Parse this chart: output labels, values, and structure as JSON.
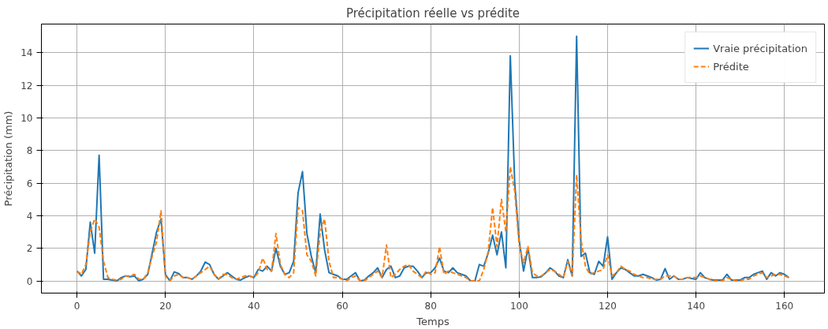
{
  "chart_data": {
    "type": "line",
    "title": "Précipitation réelle vs prédite",
    "xlabel": "Temps",
    "ylabel": "Précipitation (mm)",
    "x": [
      0,
      1,
      2,
      3,
      4,
      5,
      6,
      7,
      8,
      9,
      10,
      11,
      12,
      13,
      14,
      15,
      16,
      17,
      18,
      19,
      20,
      21,
      22,
      23,
      24,
      25,
      26,
      27,
      28,
      29,
      30,
      31,
      32,
      33,
      34,
      35,
      36,
      37,
      38,
      39,
      40,
      41,
      42,
      43,
      44,
      45,
      46,
      47,
      48,
      49,
      50,
      51,
      52,
      53,
      54,
      55,
      56,
      57,
      58,
      59,
      60,
      61,
      62,
      63,
      64,
      65,
      66,
      67,
      68,
      69,
      70,
      71,
      72,
      73,
      74,
      75,
      76,
      77,
      78,
      79,
      80,
      81,
      82,
      83,
      84,
      85,
      86,
      87,
      88,
      89,
      90,
      91,
      92,
      93,
      94,
      95,
      96,
      97,
      98,
      99,
      100,
      101,
      102,
      103,
      104,
      105,
      106,
      107,
      108,
      109,
      110,
      111,
      112,
      113,
      114,
      115,
      116,
      117,
      118,
      119,
      120,
      121,
      122,
      123,
      124,
      125,
      126,
      127,
      128,
      129,
      130,
      131,
      132,
      133,
      134,
      135,
      136,
      137,
      138,
      139,
      140,
      141,
      142,
      143,
      144,
      145,
      146,
      147,
      148,
      149,
      150,
      151,
      152,
      153,
      154,
      155,
      156,
      157,
      158,
      159,
      160,
      161
    ],
    "series": [
      {
        "name": "Vraie précipitation",
        "color": "#1f77b4",
        "line_style": "solid",
        "values": [
          0.6,
          0.3,
          0.7,
          3.6,
          1.7,
          7.7,
          0.1,
          0.1,
          0.05,
          0.0,
          0.2,
          0.3,
          0.25,
          0.3,
          0.0,
          0.1,
          0.4,
          1.7,
          3.0,
          3.8,
          0.4,
          0.0,
          0.55,
          0.45,
          0.2,
          0.2,
          0.1,
          0.3,
          0.6,
          1.15,
          1.0,
          0.4,
          0.1,
          0.3,
          0.5,
          0.3,
          0.1,
          0.05,
          0.2,
          0.3,
          0.2,
          0.7,
          0.6,
          0.9,
          0.6,
          2.0,
          0.9,
          0.4,
          0.5,
          1.2,
          5.4,
          6.7,
          2.9,
          1.5,
          0.5,
          4.1,
          1.9,
          0.5,
          0.4,
          0.3,
          0.1,
          0.1,
          0.3,
          0.5,
          0.0,
          0.05,
          0.3,
          0.5,
          0.8,
          0.2,
          0.7,
          0.9,
          0.2,
          0.3,
          0.8,
          0.9,
          0.9,
          0.6,
          0.2,
          0.5,
          0.5,
          0.8,
          1.4,
          0.6,
          0.5,
          0.8,
          0.5,
          0.4,
          0.3,
          0.0,
          0.0,
          1.0,
          0.9,
          1.7,
          2.8,
          1.6,
          3.0,
          0.8,
          13.8,
          6.0,
          2.5,
          0.6,
          2.0,
          0.2,
          0.2,
          0.25,
          0.5,
          0.8,
          0.6,
          0.3,
          0.2,
          1.3,
          0.3,
          15.0,
          1.5,
          1.7,
          0.5,
          0.4,
          1.2,
          0.9,
          2.7,
          0.1,
          0.5,
          0.8,
          0.7,
          0.5,
          0.3,
          0.3,
          0.4,
          0.3,
          0.2,
          0.05,
          0.1,
          0.75,
          0.1,
          0.3,
          0.1,
          0.1,
          0.2,
          0.15,
          0.1,
          0.5,
          0.2,
          0.1,
          0.05,
          0.05,
          0.05,
          0.4,
          0.05,
          0.05,
          0.05,
          0.2,
          0.2,
          0.4,
          0.5,
          0.6,
          0.1,
          0.5,
          0.3,
          0.5,
          0.4,
          0.2
        ]
      },
      {
        "name": "Prédite",
        "color": "#ff7f0e",
        "line_style": "dashed",
        "values": [
          0.6,
          0.4,
          1.0,
          3.0,
          3.8,
          3.3,
          1.2,
          0.2,
          0.1,
          0.05,
          0.1,
          0.3,
          0.3,
          0.4,
          0.1,
          0.1,
          0.5,
          1.5,
          2.4,
          4.3,
          0.3,
          0.0,
          0.3,
          0.4,
          0.2,
          0.2,
          0.1,
          0.3,
          0.5,
          0.7,
          0.9,
          0.4,
          0.1,
          0.4,
          0.4,
          0.2,
          0.1,
          0.2,
          0.3,
          0.3,
          0.2,
          0.5,
          1.4,
          0.7,
          0.6,
          2.9,
          1.0,
          0.4,
          0.2,
          0.5,
          4.5,
          4.3,
          1.6,
          1.2,
          0.3,
          3.0,
          3.8,
          1.2,
          0.2,
          0.2,
          0.1,
          0.0,
          0.2,
          0.3,
          0.0,
          0.0,
          0.2,
          0.4,
          0.6,
          0.2,
          2.2,
          0.2,
          0.4,
          0.7,
          0.9,
          1.0,
          0.6,
          0.4,
          0.2,
          0.6,
          0.4,
          0.5,
          2.1,
          0.4,
          0.6,
          0.5,
          0.4,
          0.3,
          0.2,
          0.0,
          0.0,
          0.0,
          0.7,
          1.8,
          4.5,
          2.1,
          5.0,
          3.0,
          7.0,
          5.5,
          2.2,
          1.1,
          2.1,
          0.5,
          0.3,
          0.3,
          0.5,
          0.7,
          0.6,
          0.4,
          0.2,
          1.2,
          0.3,
          6.5,
          2.5,
          0.9,
          0.4,
          0.5,
          0.6,
          0.7,
          1.6,
          0.3,
          0.5,
          0.9,
          0.7,
          0.6,
          0.4,
          0.3,
          0.2,
          0.2,
          0.1,
          0.1,
          0.1,
          0.3,
          0.3,
          0.3,
          0.1,
          0.1,
          0.2,
          0.2,
          0.2,
          0.3,
          0.2,
          0.1,
          0.0,
          0.0,
          0.0,
          0.2,
          0.1,
          0.0,
          0.0,
          0.1,
          0.1,
          0.3,
          0.4,
          0.5,
          0.2,
          0.3,
          0.4,
          0.4,
          0.3,
          0.2
        ]
      }
    ],
    "xlim": [
      -8.05,
      169.05
    ],
    "ylim": [
      -0.75,
      15.75
    ],
    "xticks": [
      0,
      20,
      40,
      60,
      80,
      100,
      120,
      140,
      160
    ],
    "yticks": [
      0,
      2,
      4,
      6,
      8,
      10,
      12,
      14
    ],
    "grid": true,
    "legend": "top right"
  }
}
